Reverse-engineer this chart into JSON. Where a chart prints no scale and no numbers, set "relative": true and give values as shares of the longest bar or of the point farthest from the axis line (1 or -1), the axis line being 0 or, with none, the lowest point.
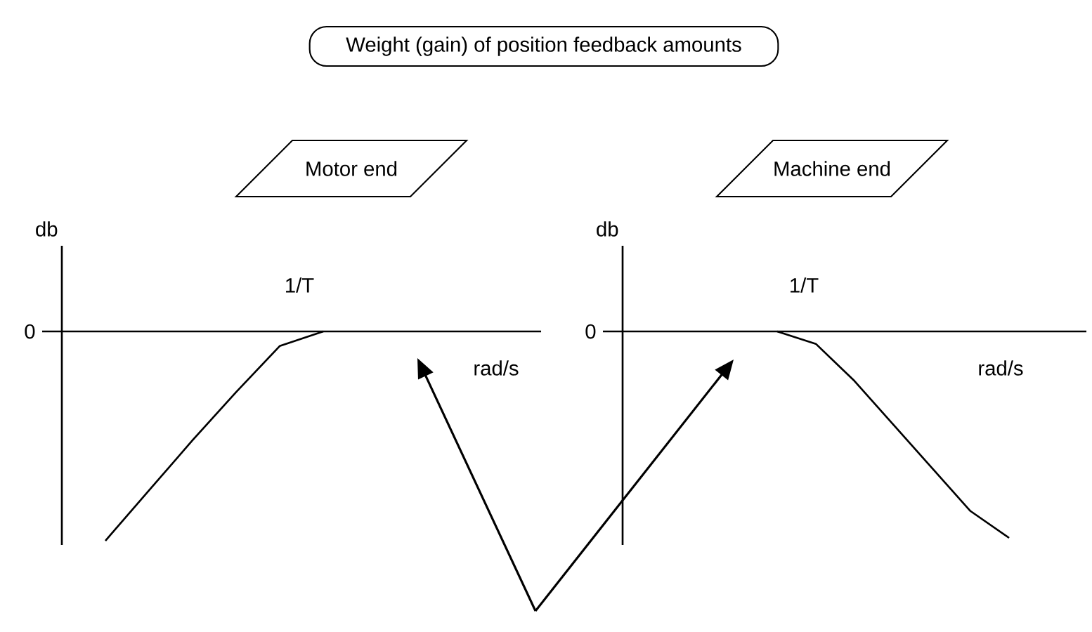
{
  "chart_data": [
    {
      "type": "line",
      "title": "Motor end",
      "xlabel": "rad/s",
      "ylabel": "db",
      "relative": true,
      "categories": [
        null,
        null,
        null,
        null,
        null,
        null,
        null,
        null,
        null,
        null,
        null,
        null
      ],
      "values": [
        null,
        -1,
        -0.76,
        -0.52,
        -0.29,
        -0.07,
        0,
        null,
        null,
        null,
        null,
        null
      ],
      "color": "#000000",
      "annotations": [
        "0",
        "1/T",
        "Weight (gain) of position feedback amounts"
      ]
    },
    {
      "type": "line",
      "title": "Machine end",
      "xlabel": "rad/s",
      "ylabel": "db",
      "relative": true,
      "categories": [
        null,
        null,
        null,
        null,
        null,
        null,
        null,
        null,
        null,
        null,
        null,
        null,
        null
      ],
      "values": [
        null,
        null,
        null,
        null,
        0,
        -0.06,
        -0.24,
        -0.45,
        -0.66,
        -0.87,
        -1,
        null,
        null
      ],
      "color": "#000000",
      "annotations": [
        "0",
        "1/T"
      ]
    }
  ]
}
